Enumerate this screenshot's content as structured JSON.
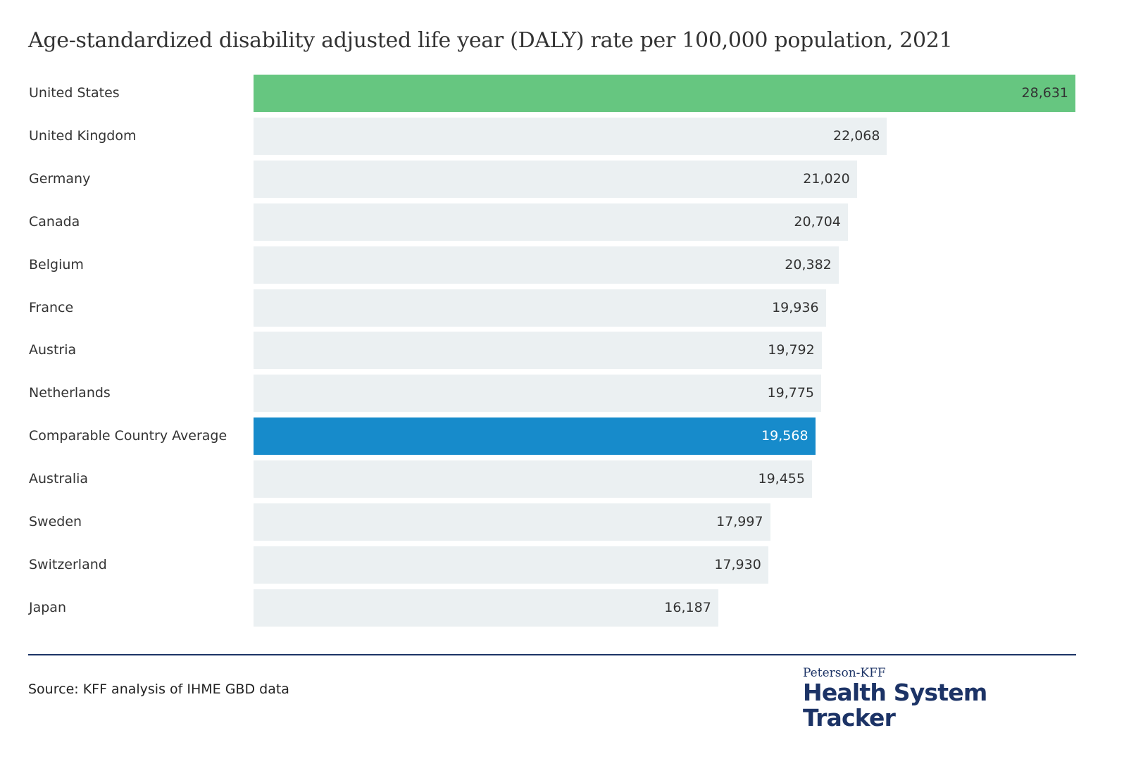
{
  "chart_data": {
    "type": "bar",
    "orientation": "horizontal",
    "title": "Age-standardized disability adjusted life year (DALY) rate per 100,000 population, 2021",
    "categories": [
      "United States",
      "United Kingdom",
      "Germany",
      "Canada",
      "Belgium",
      "France",
      "Austria",
      "Netherlands",
      "Comparable Country Average",
      "Australia",
      "Sweden",
      "Switzerland",
      "Japan"
    ],
    "values": [
      28631,
      22068,
      21020,
      20704,
      20382,
      19936,
      19792,
      19775,
      19568,
      19455,
      17997,
      17930,
      16187
    ],
    "value_labels": [
      "28,631",
      "22,068",
      "21,020",
      "20,704",
      "20,382",
      "19,936",
      "19,792",
      "19,775",
      "19,568",
      "19,455",
      "17,997",
      "17,930",
      "16,187"
    ],
    "xlim": [
      0,
      28631
    ],
    "grid": false,
    "colors": {
      "default": "#ebf0f2",
      "United States": "#66c680",
      "Comparable Country Average": "#178bcb"
    }
  },
  "footer": {
    "source": "Source: KFF analysis of IHME GBD data",
    "logo_top": "Peterson-KFF",
    "logo_main": "Health System Tracker"
  }
}
